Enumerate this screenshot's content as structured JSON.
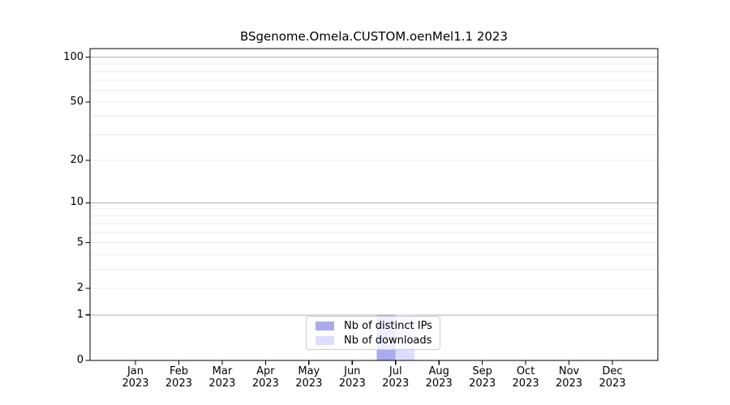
{
  "chart_data": {
    "type": "bar",
    "title": "BSgenome.Omela.CUSTOM.oenMel1.1 2023",
    "categories": [
      "Jan",
      "Feb",
      "Mar",
      "Apr",
      "May",
      "Jun",
      "Jul",
      "Aug",
      "Sep",
      "Oct",
      "Nov",
      "Dec"
    ],
    "x_tick_second_line": "2023",
    "series": [
      {
        "name": "Nb of distinct IPs",
        "color": "#aaaaee",
        "values": [
          0,
          0,
          0,
          0,
          0,
          0,
          1,
          0,
          0,
          0,
          0,
          0
        ]
      },
      {
        "name": "Nb of downloads",
        "color": "#ddddff",
        "values": [
          0,
          0,
          0,
          0,
          0,
          0,
          1,
          0,
          0,
          0,
          0,
          0
        ]
      }
    ],
    "yscale": "log1p",
    "ylim": [
      0,
      114
    ],
    "yticks": [
      0,
      1,
      2,
      5,
      10,
      20,
      50,
      100
    ],
    "grid_major_at": [
      1,
      10,
      100
    ],
    "grid_minor_at": [
      2,
      3,
      4,
      5,
      6,
      7,
      8,
      9,
      20,
      30,
      40,
      50,
      60,
      70,
      80,
      90
    ],
    "legend_position": "lower center",
    "grid": true,
    "colors": {
      "axis": "#000000",
      "grid_major": "#b0b0b0",
      "grid_minor": "#ebebeb",
      "text": "#000000",
      "legend_border": "#cccccc"
    }
  }
}
